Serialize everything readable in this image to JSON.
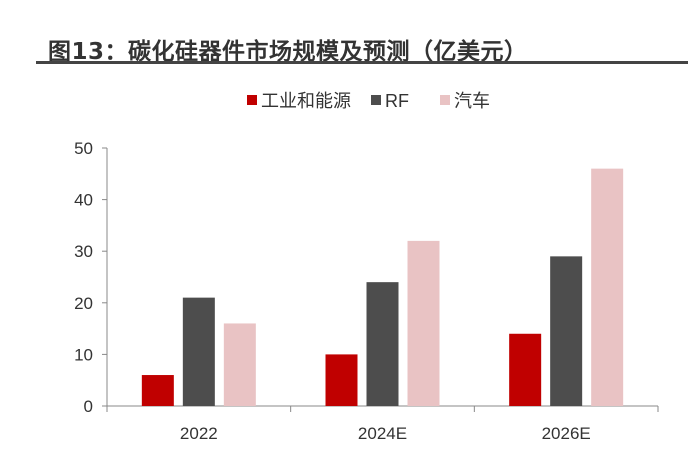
{
  "chart_data": {
    "type": "bar",
    "title": "图13：碳化硅器件市场规模及预测（亿美元）",
    "categories": [
      "2022",
      "2024E",
      "2026E"
    ],
    "series": [
      {
        "name": "工业和能源",
        "color": "#c00000",
        "values": [
          6,
          10,
          14
        ]
      },
      {
        "name": "RF",
        "color": "#4d4d4d",
        "values": [
          21,
          24,
          29
        ]
      },
      {
        "name": "汽车",
        "color": "#e9c3c4",
        "values": [
          16,
          32,
          46
        ]
      }
    ],
    "xlabel": "",
    "ylabel": "",
    "ylim": [
      0,
      50
    ],
    "yticks": [
      "0",
      "10",
      "20",
      "30",
      "40",
      "50"
    ],
    "grid": false,
    "legend": "top-center"
  }
}
